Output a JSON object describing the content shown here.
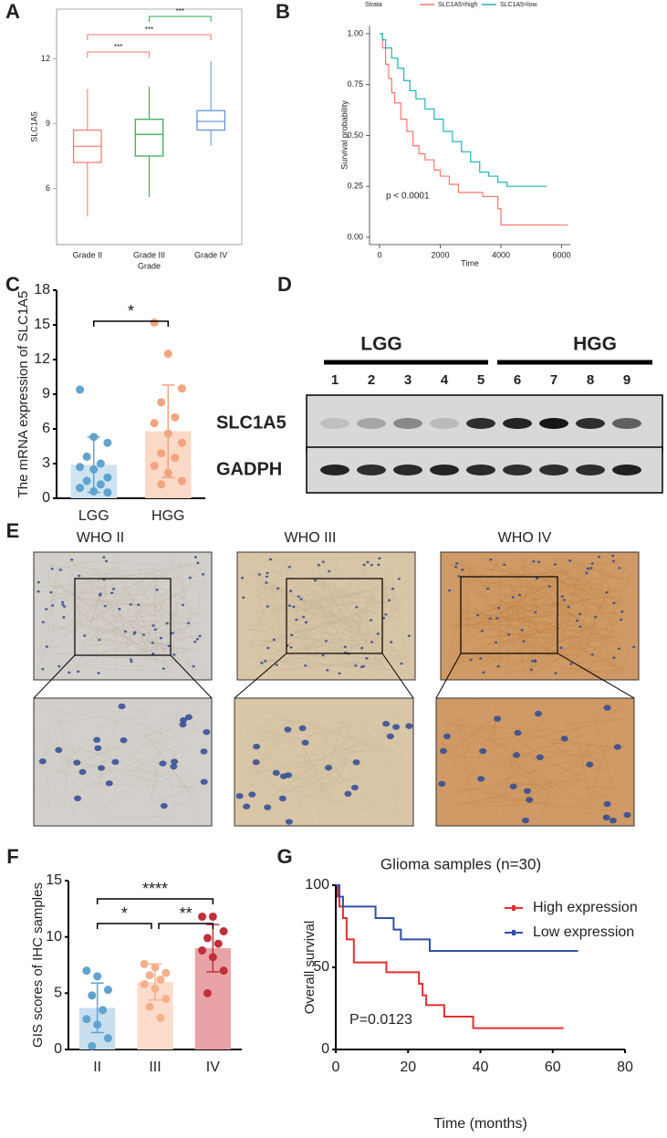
{
  "panels": [
    "A",
    "B",
    "C",
    "D",
    "E",
    "F",
    "G"
  ],
  "blot": {
    "groups": [
      "LGG",
      "HGG"
    ],
    "lanes": [
      "1",
      "2",
      "3",
      "4",
      "5",
      "6",
      "7",
      "8",
      "9"
    ],
    "rows": [
      "SLC1A5",
      "GADPH"
    ]
  },
  "ihc": {
    "titles": [
      "WHO II",
      "WHO III",
      "WHO IV"
    ]
  },
  "chart_data": [
    {
      "type": "box",
      "ylabel": "SLC1A5",
      "xlabel": "Grade",
      "categories": [
        "Grade II",
        "Grade III",
        "Grade IV"
      ],
      "colors": [
        "#f8766d",
        "#2ba84a",
        "#5b8fd6"
      ],
      "min": [
        4.7,
        5.6,
        8.0
      ],
      "q1": [
        7.2,
        7.5,
        8.7
      ],
      "median": [
        7.95,
        8.5,
        9.1
      ],
      "q3": [
        8.7,
        9.2,
        9.6
      ],
      "max": [
        10.6,
        10.7,
        11.9
      ],
      "ylim": [
        3.4,
        14.3
      ],
      "yticks": [
        6,
        9,
        12
      ],
      "significance": [
        {
          "label": "***",
          "color": "#2ba84a"
        },
        {
          "label": "***",
          "color": "#f8766d"
        },
        {
          "label": "***",
          "color": "#f8766d"
        }
      ]
    },
    {
      "type": "km",
      "legend_title": "Strata",
      "xlabel": "Time",
      "ylabel": "Survival probability",
      "annotation": "p < 0.0001",
      "series": [
        {
          "name": "SLC1A5=high",
          "color": "#f8766d",
          "x": [
            0,
            100,
            200,
            300,
            400,
            500,
            700,
            900,
            1100,
            1300,
            1500,
            1800,
            2000,
            2300,
            2600,
            3000,
            3400,
            3700,
            3900,
            4000,
            6200
          ],
          "values": [
            1,
            0.93,
            0.85,
            0.78,
            0.71,
            0.66,
            0.58,
            0.52,
            0.45,
            0.41,
            0.38,
            0.33,
            0.3,
            0.26,
            0.22,
            0.22,
            0.2,
            0.2,
            0.14,
            0.06,
            0.06
          ]
        },
        {
          "name": "SLC1A5=low",
          "color": "#1fb3b3",
          "x": [
            0,
            100,
            200,
            400,
            600,
            800,
            1000,
            1200,
            1500,
            1800,
            2100,
            2400,
            2700,
            3000,
            3300,
            3600,
            3900,
            4200,
            5500
          ],
          "values": [
            1,
            0.97,
            0.93,
            0.88,
            0.83,
            0.77,
            0.72,
            0.68,
            0.63,
            0.58,
            0.52,
            0.47,
            0.42,
            0.37,
            0.32,
            0.3,
            0.27,
            0.25,
            0.25
          ]
        }
      ],
      "xlim": [
        -330,
        6285
      ],
      "ylim": [
        -0.036,
        1.04
      ],
      "xticks": [
        0,
        2000,
        4000,
        6000
      ],
      "yticks": [
        {
          "value": 0,
          "label": "0.00"
        },
        {
          "value": 0.25,
          "label": "0.25"
        },
        {
          "value": 0.5,
          "label": "0.50"
        },
        {
          "value": 0.75,
          "label": "0.75"
        },
        {
          "value": 1,
          "label": "1.00"
        }
      ]
    },
    {
      "type": "bar",
      "ylabel": "The mRNA expression of SLC1A5",
      "categories": [
        "LGG",
        "HGG"
      ],
      "values": [
        2.9,
        5.8
      ],
      "errors": [
        2.4,
        4.0
      ],
      "points": [
        [
          9.4,
          5.3,
          4.8,
          3.6,
          3.0,
          2.7,
          2.5,
          1.8,
          1.5,
          1.2,
          0.9,
          0.6,
          0.5
        ],
        [
          15.2,
          12.5,
          9.5,
          8.3,
          7.0,
          6.5,
          5.6,
          4.8,
          3.9,
          3.5,
          2.8,
          2.2,
          1.5,
          1.2
        ]
      ],
      "point_colors": [
        "#5fa3cf",
        "#f2a47e"
      ],
      "bar_colors": [
        "#cfe3f0",
        "#fbd9c7"
      ],
      "ylim": [
        0,
        18
      ],
      "yticks": [
        0,
        3,
        6,
        9,
        12,
        15,
        18
      ],
      "significance": [
        {
          "label": "*",
          "color": "#000000"
        }
      ]
    },
    {
      "type": "bar",
      "ylabel": "GIS scores of IHC samples",
      "categories": [
        "II",
        "III",
        "IV"
      ],
      "values": [
        3.7,
        6.0,
        9.0
      ],
      "errors": [
        2.2,
        1.6,
        2.1
      ],
      "points": [
        [
          7.0,
          6.5,
          5.3,
          4.8,
          3.5,
          2.7,
          2.2,
          1.0,
          0.3
        ],
        [
          7.6,
          7.3,
          6.8,
          6.6,
          6.2,
          5.8,
          5.4,
          4.5,
          3.8,
          2.8
        ],
        [
          11.8,
          11.8,
          10.5,
          9.9,
          9.4,
          8.8,
          8.2,
          7.0,
          5.0
        ]
      ],
      "point_colors": [
        "#5fa3cf",
        "#f3b08a",
        "#c0303a"
      ],
      "bar_colors": [
        "#c8dfef",
        "#fbdcca",
        "#e9a3a8"
      ],
      "ylim": [
        0,
        15
      ],
      "yticks": [
        0,
        5,
        10,
        15
      ],
      "significance": [
        {
          "label": "****",
          "color": "#000000"
        },
        {
          "label": "*",
          "color": "#000000"
        },
        {
          "label": "**",
          "color": "#000000"
        }
      ]
    },
    {
      "type": "km",
      "title": "Glioma samples (n=30)",
      "xlabel": "Time (months)",
      "ylabel": "Overall survival",
      "annotation": "P=0.0123",
      "series": [
        {
          "name": "High expression",
          "color": "#e0302f",
          "x": [
            0,
            0.5,
            1,
            2,
            3,
            5,
            14,
            23,
            24,
            25,
            30,
            38,
            63
          ],
          "values": [
            100,
            93,
            87,
            80,
            67,
            53,
            47,
            40,
            33,
            27,
            20,
            13,
            13
          ]
        },
        {
          "name": "Low expression",
          "color": "#3050a8",
          "x": [
            0,
            1,
            2,
            10,
            11,
            16,
            18,
            26,
            67
          ],
          "values": [
            100,
            93,
            87,
            87,
            80,
            73,
            67,
            60,
            60
          ]
        }
      ],
      "xlim": [
        0,
        80
      ],
      "ylim": [
        0,
        100
      ],
      "xticks": [
        0,
        20,
        40,
        60,
        80
      ],
      "yticks": [
        0,
        50,
        100
      ],
      "legend": "upper right"
    }
  ]
}
